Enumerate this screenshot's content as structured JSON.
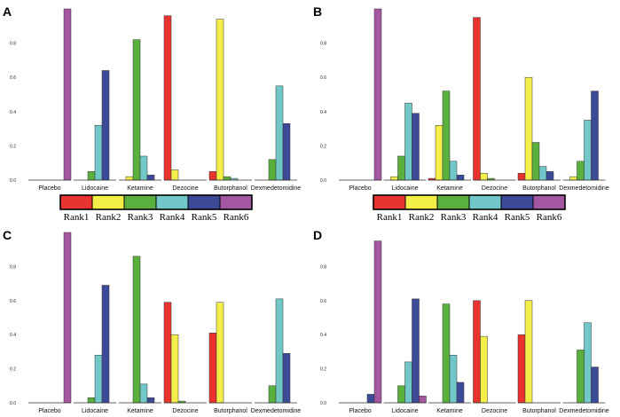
{
  "colors": {
    "Rank1": "#e8332f",
    "Rank2": "#f4ee48",
    "Rank3": "#5ab03c",
    "Rank4": "#72c8c8",
    "Rank5": "#3c4a98",
    "Rank6": "#a556a0"
  },
  "legend": {
    "items": [
      "Rank1",
      "Rank2",
      "Rank3",
      "Rank4",
      "Rank5",
      "Rank6"
    ]
  },
  "chart_data": [
    {
      "panel": "A",
      "type": "bar",
      "categories": [
        "Placebo",
        "Lidocaine",
        "Ketamine",
        "Dezocine",
        "Butorphanol",
        "Dexmedetomidine"
      ],
      "ylim": [
        0,
        1.0
      ],
      "yticks": [
        "0.0",
        "0.2",
        "0.4",
        "0.6",
        "0.8"
      ],
      "series": [
        {
          "name": "Rank1",
          "values": [
            0.0,
            0.0,
            0.0,
            0.96,
            0.05,
            0.0
          ]
        },
        {
          "name": "Rank2",
          "values": [
            0.0,
            0.0,
            0.02,
            0.06,
            0.94,
            0.0
          ]
        },
        {
          "name": "Rank3",
          "values": [
            0.0,
            0.05,
            0.82,
            0.0,
            0.02,
            0.12
          ]
        },
        {
          "name": "Rank4",
          "values": [
            0.0,
            0.32,
            0.14,
            0.0,
            0.01,
            0.55
          ]
        },
        {
          "name": "Rank5",
          "values": [
            0.0,
            0.64,
            0.03,
            0.0,
            0.0,
            0.33
          ]
        },
        {
          "name": "Rank6",
          "values": [
            1.0,
            0.0,
            0.0,
            0.0,
            0.0,
            0.0
          ]
        }
      ]
    },
    {
      "panel": "B",
      "type": "bar",
      "categories": [
        "Placebo",
        "Lidocaine",
        "Ketamine",
        "Dezocine",
        "Butorphanol",
        "Dexmedetomidine"
      ],
      "ylim": [
        0,
        1.0
      ],
      "yticks": [
        "0.0",
        "0.2",
        "0.4",
        "0.6",
        "0.8"
      ],
      "series": [
        {
          "name": "Rank1",
          "values": [
            0.0,
            0.0,
            0.01,
            0.95,
            0.04,
            0.0
          ]
        },
        {
          "name": "Rank2",
          "values": [
            0.0,
            0.02,
            0.32,
            0.04,
            0.6,
            0.02
          ]
        },
        {
          "name": "Rank3",
          "values": [
            0.0,
            0.14,
            0.52,
            0.01,
            0.22,
            0.11
          ]
        },
        {
          "name": "Rank4",
          "values": [
            0.0,
            0.45,
            0.11,
            0.0,
            0.08,
            0.35
          ]
        },
        {
          "name": "Rank5",
          "values": [
            0.0,
            0.39,
            0.03,
            0.0,
            0.05,
            0.52
          ]
        },
        {
          "name": "Rank6",
          "values": [
            1.0,
            0.0,
            0.0,
            0.0,
            0.0,
            0.0
          ]
        }
      ]
    },
    {
      "panel": "C",
      "type": "bar",
      "categories": [
        "Placebo",
        "Lidocaine",
        "Ketamine",
        "Dezocine",
        "Butorphanol",
        "Dexmedetomidine"
      ],
      "ylim": [
        0,
        1.0
      ],
      "yticks": [
        "0.0",
        "0.2",
        "0.4",
        "0.6",
        "0.8"
      ],
      "series": [
        {
          "name": "Rank1",
          "values": [
            0.0,
            0.0,
            0.0,
            0.59,
            0.41,
            0.0
          ]
        },
        {
          "name": "Rank2",
          "values": [
            0.0,
            0.0,
            0.0,
            0.4,
            0.59,
            0.0
          ]
        },
        {
          "name": "Rank3",
          "values": [
            0.0,
            0.03,
            0.86,
            0.01,
            0.0,
            0.1
          ]
        },
        {
          "name": "Rank4",
          "values": [
            0.0,
            0.28,
            0.11,
            0.0,
            0.0,
            0.61
          ]
        },
        {
          "name": "Rank5",
          "values": [
            0.0,
            0.69,
            0.03,
            0.0,
            0.0,
            0.29
          ]
        },
        {
          "name": "Rank6",
          "values": [
            1.0,
            0.0,
            0.0,
            0.0,
            0.0,
            0.0
          ]
        }
      ]
    },
    {
      "panel": "D",
      "type": "bar",
      "categories": [
        "Placebo",
        "Lidocaine",
        "Ketamine",
        "Dezocine",
        "Butorphanol",
        "Dexmedetomidine"
      ],
      "ylim": [
        0,
        1.0
      ],
      "yticks": [
        "0.0",
        "0.2",
        "0.4",
        "0.6",
        "0.8"
      ],
      "series": [
        {
          "name": "Rank1",
          "values": [
            0.0,
            0.0,
            0.0,
            0.6,
            0.4,
            0.0
          ]
        },
        {
          "name": "Rank2",
          "values": [
            0.0,
            0.0,
            0.0,
            0.39,
            0.6,
            0.0
          ]
        },
        {
          "name": "Rank3",
          "values": [
            0.0,
            0.1,
            0.58,
            0.0,
            0.0,
            0.31
          ]
        },
        {
          "name": "Rank4",
          "values": [
            0.0,
            0.24,
            0.28,
            0.0,
            0.0,
            0.47
          ]
        },
        {
          "name": "Rank5",
          "values": [
            0.05,
            0.61,
            0.12,
            0.0,
            0.0,
            0.21
          ]
        },
        {
          "name": "Rank6",
          "values": [
            0.95,
            0.04,
            0.0,
            0.0,
            0.0,
            0.0
          ]
        }
      ]
    }
  ]
}
